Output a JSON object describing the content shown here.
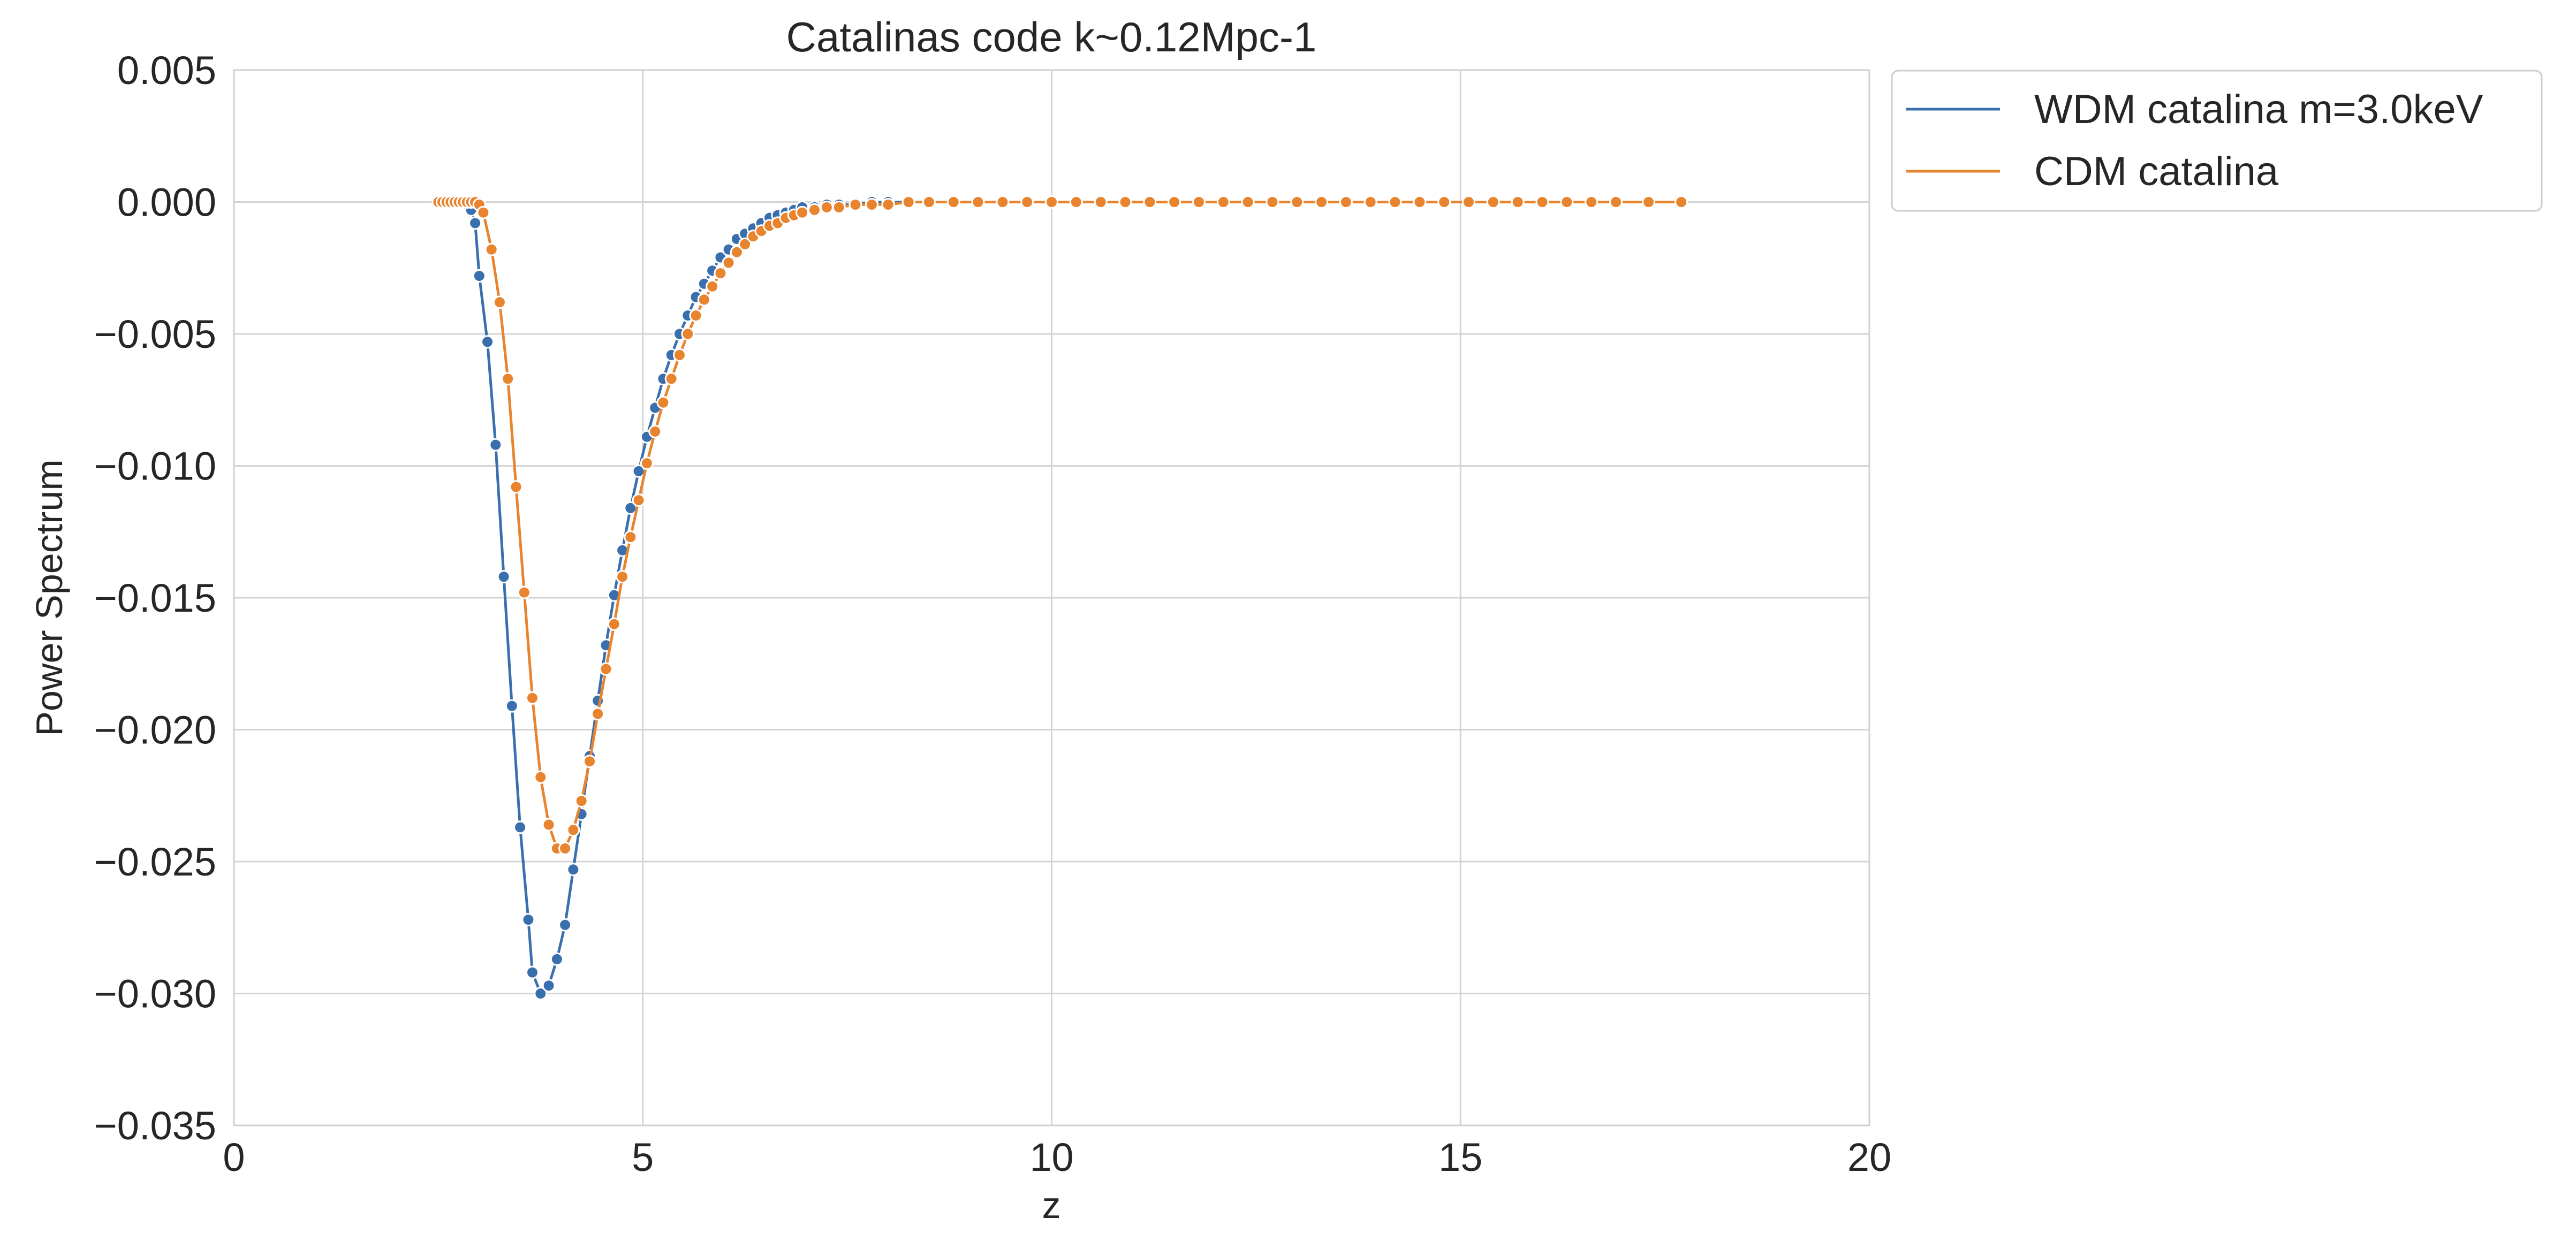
{
  "chart_data": {
    "type": "line",
    "title": "Catalinas code k~0.12Mpc-1",
    "xlabel": "z",
    "ylabel": "Power Spectrum",
    "xlim": [
      0,
      20
    ],
    "ylim": [
      -0.035,
      0.005
    ],
    "xticks": [
      0,
      5,
      10,
      15,
      20
    ],
    "xtick_labels": [
      "0",
      "5",
      "10",
      "15",
      "20"
    ],
    "yticks": [
      0.005,
      0.0,
      -0.005,
      -0.01,
      -0.015,
      -0.02,
      -0.025,
      -0.03,
      -0.035
    ],
    "ytick_labels": [
      "0.005",
      "0.000",
      "−0.005",
      "−0.010",
      "−0.015",
      "−0.020",
      "−0.025",
      "−0.030",
      "−0.035"
    ],
    "grid": true,
    "legend_position": "outside-top-right",
    "markers": true,
    "series": [
      {
        "name": "WDM catalina m=3.0keV",
        "color": "#3a6fad",
        "x": [
          2.5,
          2.55,
          2.6,
          2.65,
          2.7,
          2.75,
          2.8,
          2.85,
          2.9,
          2.95,
          3.0,
          3.1,
          3.2,
          3.3,
          3.4,
          3.5,
          3.6,
          3.65,
          3.75,
          3.85,
          3.95,
          4.05,
          4.15,
          4.25,
          4.35,
          4.45,
          4.55,
          4.65,
          4.75,
          4.85,
          4.95,
          5.05,
          5.15,
          5.25,
          5.35,
          5.45,
          5.55,
          5.65,
          5.75,
          5.85,
          5.95,
          6.05,
          6.15,
          6.25,
          6.35,
          6.45,
          6.55,
          6.65,
          6.75,
          6.85,
          6.95,
          7.1,
          7.25,
          7.4,
          7.6,
          7.8,
          8.0,
          8.25,
          8.5,
          8.8,
          9.1,
          9.4,
          9.7,
          10.0,
          10.3,
          10.6,
          10.9,
          11.2,
          11.5,
          11.8,
          12.1,
          12.4,
          12.7,
          13.0,
          13.3,
          13.6,
          13.9,
          14.2,
          14.5,
          14.8,
          15.1,
          15.4,
          15.7,
          16.0,
          16.3,
          16.6,
          16.9,
          17.3,
          17.7
        ],
        "y": [
          0.0,
          0.0,
          0.0,
          0.0,
          0.0,
          0.0,
          0.0,
          -0.0001,
          -0.0003,
          -0.0008,
          -0.0028,
          -0.0053,
          -0.0092,
          -0.0142,
          -0.0191,
          -0.0237,
          -0.0272,
          -0.0292,
          -0.03,
          -0.0297,
          -0.0287,
          -0.0274,
          -0.0253,
          -0.0232,
          -0.021,
          -0.0189,
          -0.0168,
          -0.0149,
          -0.0132,
          -0.0116,
          -0.0102,
          -0.0089,
          -0.0078,
          -0.0067,
          -0.0058,
          -0.005,
          -0.0043,
          -0.0036,
          -0.0031,
          -0.0026,
          -0.0021,
          -0.0018,
          -0.0014,
          -0.0012,
          -0.001,
          -0.0008,
          -0.0006,
          -0.0005,
          -0.0004,
          -0.0003,
          -0.0002,
          -0.0002,
          -0.0001,
          -0.0001,
          -0.0001,
          0.0,
          0.0,
          0.0,
          0.0,
          0.0,
          0.0,
          0.0,
          0.0,
          0.0,
          0.0,
          0.0,
          0.0,
          0.0,
          0.0,
          0.0,
          0.0,
          0.0,
          0.0,
          0.0,
          0.0,
          0.0,
          0.0,
          0.0,
          0.0,
          0.0,
          0.0,
          0.0,
          0.0,
          0.0,
          0.0,
          0.0,
          0.0,
          0.0,
          0.0
        ]
      },
      {
        "name": "CDM catalina",
        "color": "#e8832e",
        "x": [
          2.5,
          2.55,
          2.6,
          2.65,
          2.7,
          2.75,
          2.8,
          2.85,
          2.9,
          2.95,
          3.0,
          3.05,
          3.15,
          3.25,
          3.35,
          3.45,
          3.55,
          3.65,
          3.75,
          3.85,
          3.95,
          4.05,
          4.15,
          4.25,
          4.35,
          4.45,
          4.55,
          4.65,
          4.75,
          4.85,
          4.95,
          5.05,
          5.15,
          5.25,
          5.35,
          5.45,
          5.55,
          5.65,
          5.75,
          5.85,
          5.95,
          6.05,
          6.15,
          6.25,
          6.35,
          6.45,
          6.55,
          6.65,
          6.75,
          6.85,
          6.95,
          7.1,
          7.25,
          7.4,
          7.6,
          7.8,
          8.0,
          8.25,
          8.5,
          8.8,
          9.1,
          9.4,
          9.7,
          10.0,
          10.3,
          10.6,
          10.9,
          11.2,
          11.5,
          11.8,
          12.1,
          12.4,
          12.7,
          13.0,
          13.3,
          13.6,
          13.9,
          14.2,
          14.5,
          14.8,
          15.1,
          15.4,
          15.7,
          16.0,
          16.3,
          16.6,
          16.9,
          17.3,
          17.7
        ],
        "y": [
          0.0,
          0.0,
          0.0,
          0.0,
          0.0,
          0.0,
          0.0,
          0.0,
          0.0,
          0.0,
          -0.0001,
          -0.0004,
          -0.0018,
          -0.0038,
          -0.0067,
          -0.0108,
          -0.0148,
          -0.0188,
          -0.0218,
          -0.0236,
          -0.0245,
          -0.0245,
          -0.0238,
          -0.0227,
          -0.0212,
          -0.0194,
          -0.0177,
          -0.016,
          -0.0142,
          -0.0127,
          -0.0113,
          -0.0099,
          -0.0087,
          -0.0076,
          -0.0067,
          -0.0058,
          -0.005,
          -0.0043,
          -0.0037,
          -0.0032,
          -0.0027,
          -0.0023,
          -0.0019,
          -0.0016,
          -0.0013,
          -0.0011,
          -0.0009,
          -0.0008,
          -0.0006,
          -0.0005,
          -0.0004,
          -0.0003,
          -0.0002,
          -0.0002,
          -0.0001,
          -0.0001,
          -0.0001,
          0.0,
          0.0,
          0.0,
          0.0,
          0.0,
          0.0,
          0.0,
          0.0,
          0.0,
          0.0,
          0.0,
          0.0,
          0.0,
          0.0,
          0.0,
          0.0,
          0.0,
          0.0,
          0.0,
          0.0,
          0.0,
          0.0,
          0.0,
          0.0,
          0.0,
          0.0,
          0.0,
          0.0,
          0.0,
          0.0,
          0.0,
          0.0
        ]
      }
    ]
  }
}
